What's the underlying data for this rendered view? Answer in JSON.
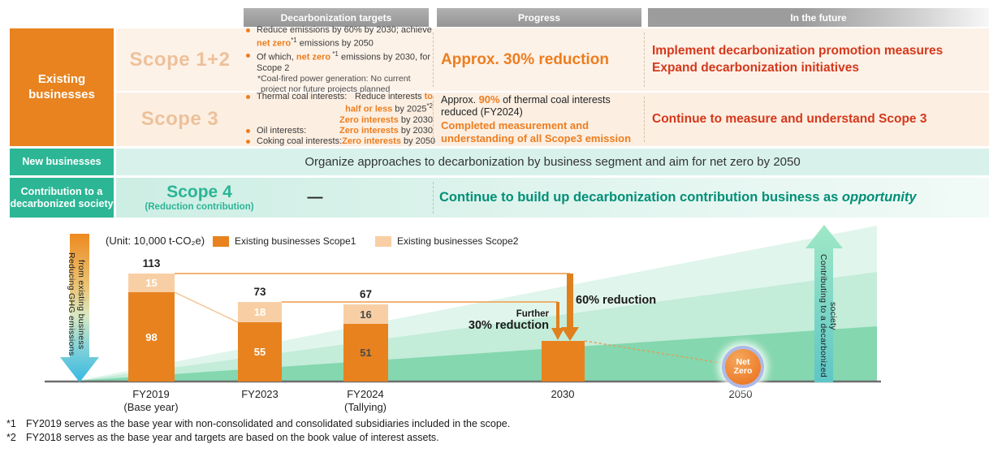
{
  "colors": {
    "orange": "#e8821f",
    "light_orange": "#f8cfa5",
    "accent_orange_text": "#ed7d1f",
    "red_text": "#d5381c",
    "teal": "#2cb695",
    "green_text": "#008f76"
  },
  "headers": {
    "targets": "Decarbonization targets",
    "progress": "Progress",
    "future": "In the future"
  },
  "table": {
    "existing_label": "Existing businesses",
    "scope12": {
      "label": "Scope 1+2",
      "bullet1": {
        "pre": "Reduce emissions by 60% by 2030; achieve ",
        "accent": "net zero",
        "sup": "*1",
        "post": " emissions by 2050"
      },
      "bullet2": {
        "pre": "Of which, ",
        "accent": "net zero",
        "sup": " *1",
        "post": " emissions by 2030, for Scope 2"
      },
      "note_line1": "*Coal-fired power generation: No current",
      "note_line2": "project nor future projects planned",
      "progress": "Approx. 30% reduction",
      "future_line1": "Implement decarbonization promotion measures",
      "future_line2": "Expand decarbonization initiatives"
    },
    "scope3": {
      "label": "Scope 3",
      "targets": [
        {
          "label": "Thermal coal interests:",
          "pre": "Reduce interests ",
          "accent": "to",
          "post": "",
          "sup": ""
        },
        {
          "label": "",
          "pre": "",
          "accent": "half or less",
          "post": " by 2025",
          "sup": "*2"
        },
        {
          "label": "",
          "pre": "",
          "accent": "Zero interests",
          "post": " by 2030",
          "sup": ""
        },
        {
          "label": "Oil interests:",
          "pre": "",
          "accent": "Zero interests",
          "post": " by 2030",
          "sup": ""
        },
        {
          "label": "Coking coal interests:",
          "pre": "",
          "accent": "Zero interests",
          "post": " by 2050",
          "sup": ""
        }
      ],
      "progress_pre": "Approx. ",
      "progress_accent": "90%",
      "progress_post": " of thermal coal interests reduced (FY2024)",
      "progress_highlight": "Completed measurement and understanding of all Scope3 emission",
      "future": "Continue to measure and understand Scope 3"
    },
    "new_businesses": {
      "label": "New businesses",
      "text": "Organize approaches to decarbonization by business segment and aim for net zero by 2050"
    },
    "contribution": {
      "label": "Contribution to a decarbonized society",
      "scope_label": "Scope 4",
      "scope_sub": "(Reduction  contribution)",
      "dash": "—",
      "text_pre": "Continue to build up decarbonization contribution business as ",
      "text_italic": "opportunity"
    }
  },
  "chart_data": {
    "type": "bar",
    "stacked": true,
    "unit_label": "(Unit: 10,000 t-CO₂e)",
    "legend": [
      {
        "label": "Existing businesses  Scope1",
        "color": "#e8821f"
      },
      {
        "label": "Existing businesses  Scope2",
        "color": "#f8cfa5"
      }
    ],
    "categories": [
      "FY2019 (Base year)",
      "FY2023",
      "FY2024 (Tallying)",
      "2030",
      "2050"
    ],
    "series": [
      {
        "name": "Scope1",
        "values": [
          98,
          55,
          51,
          null,
          null
        ]
      },
      {
        "name": "Scope2",
        "values": [
          15,
          18,
          16,
          null,
          null
        ]
      }
    ],
    "totals": [
      113,
      73,
      67,
      null,
      null
    ],
    "estimated_2030_level": 45,
    "bars": [
      {
        "cat1": "FY2019",
        "cat2": "(Base year)",
        "scope1": 98,
        "scope2": 15,
        "total": 113
      },
      {
        "cat1": "FY2023",
        "cat2": "",
        "scope1": 55,
        "scope2": 18,
        "total": 73
      },
      {
        "cat1": "FY2024",
        "cat2": "(Tallying)",
        "scope1": 51,
        "scope2": 16,
        "total": 67
      },
      {
        "cat1": "2030",
        "cat2": "",
        "scope1": null,
        "scope2": null,
        "total": null
      },
      {
        "cat1": "2050",
        "cat2": "",
        "scope1": null,
        "scope2": null,
        "total": null
      }
    ],
    "annotations": {
      "further": "Further",
      "reduction30": "30% reduction",
      "reduction60": "60% reduction",
      "net_zero_line1": "Net",
      "net_zero_line2": "Zero"
    },
    "left_arrow_line1": "Reducing GHG emissions",
    "left_arrow_line2": "from existing business",
    "right_arrow_label": "Contributing to a decarbonized society"
  },
  "footnotes": [
    {
      "marker": "*1",
      "text": "FY2019 serves as the base year with non-consolidated and consolidated subsidiaries included in the scope."
    },
    {
      "marker": "*2",
      "text": "FY2018 serves as the base year and targets are based on the book value of interest assets."
    }
  ]
}
